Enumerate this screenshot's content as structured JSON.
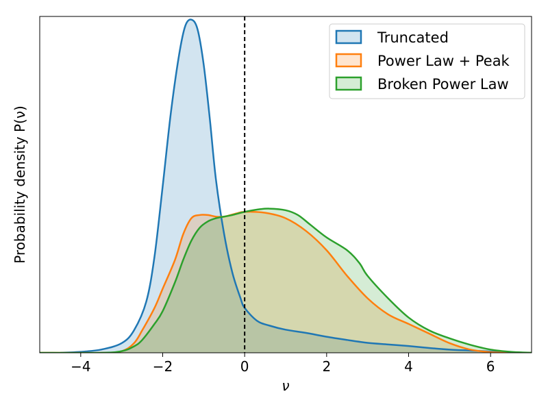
{
  "chart_data": {
    "type": "area",
    "title": "",
    "xlabel": "ν",
    "ylabel": "Probability density P(ν)",
    "xlim": [
      -5,
      7
    ],
    "ylim": [
      0,
      1.05
    ],
    "x_ticks": [
      -4,
      -2,
      0,
      2,
      4,
      6
    ],
    "x_tick_labels": [
      "−4",
      "−2",
      "0",
      "2",
      "4",
      "6"
    ],
    "y_ticks": [],
    "grid": false,
    "legend_position": "top-right",
    "reference_line": {
      "x": 0,
      "style": "dashed",
      "color": "#000000"
    },
    "series": [
      {
        "name": "Truncated",
        "color": "#1f77b4",
        "points": [
          [
            -4.5,
            0.0
          ],
          [
            -4,
            0.003
          ],
          [
            -3.5,
            0.01
          ],
          [
            -3,
            0.03
          ],
          [
            -2.7,
            0.07
          ],
          [
            -2.4,
            0.16
          ],
          [
            -2.2,
            0.3
          ],
          [
            -2,
            0.52
          ],
          [
            -1.8,
            0.75
          ],
          [
            -1.6,
            0.93
          ],
          [
            -1.45,
            1.02
          ],
          [
            -1.3,
            1.04
          ],
          [
            -1.15,
            1.01
          ],
          [
            -1.0,
            0.9
          ],
          [
            -0.85,
            0.73
          ],
          [
            -0.7,
            0.54
          ],
          [
            -0.5,
            0.37
          ],
          [
            -0.3,
            0.25
          ],
          [
            -0.1,
            0.17
          ],
          [
            0,
            0.14
          ],
          [
            0.3,
            0.1
          ],
          [
            0.6,
            0.085
          ],
          [
            1,
            0.072
          ],
          [
            1.5,
            0.062
          ],
          [
            2,
            0.05
          ],
          [
            2.5,
            0.04
          ],
          [
            3,
            0.031
          ],
          [
            3.5,
            0.026
          ],
          [
            4,
            0.021
          ],
          [
            4.5,
            0.015
          ],
          [
            5,
            0.01
          ],
          [
            5.5,
            0.007
          ],
          [
            6,
            0.004
          ],
          [
            6.5,
            0.001
          ],
          [
            7,
            0.0
          ]
        ]
      },
      {
        "name": "Power Law + Peak",
        "color": "#ff7f0e",
        "points": [
          [
            -5,
            0.0
          ],
          [
            -3.5,
            0.0
          ],
          [
            -3,
            0.005
          ],
          [
            -2.7,
            0.03
          ],
          [
            -2.5,
            0.07
          ],
          [
            -2.2,
            0.14
          ],
          [
            -2,
            0.2
          ],
          [
            -1.7,
            0.29
          ],
          [
            -1.5,
            0.37
          ],
          [
            -1.3,
            0.42
          ],
          [
            -1.1,
            0.43
          ],
          [
            -0.9,
            0.43
          ],
          [
            -0.7,
            0.425
          ],
          [
            -0.5,
            0.425
          ],
          [
            -0.2,
            0.435
          ],
          [
            0,
            0.44
          ],
          [
            0.5,
            0.437
          ],
          [
            1,
            0.42
          ],
          [
            1.5,
            0.38
          ],
          [
            2,
            0.32
          ],
          [
            2.5,
            0.24
          ],
          [
            3,
            0.17
          ],
          [
            3.5,
            0.12
          ],
          [
            4,
            0.09
          ],
          [
            4.5,
            0.06
          ],
          [
            5,
            0.03
          ],
          [
            5.5,
            0.01
          ],
          [
            6,
            0.002
          ],
          [
            6.5,
            0.0
          ],
          [
            7,
            0.0
          ]
        ]
      },
      {
        "name": "Broken Power Law",
        "color": "#2ca02c",
        "points": [
          [
            -5,
            0.0
          ],
          [
            -3.5,
            0.0
          ],
          [
            -3,
            0.005
          ],
          [
            -2.7,
            0.02
          ],
          [
            -2.5,
            0.04
          ],
          [
            -2.2,
            0.09
          ],
          [
            -2,
            0.13
          ],
          [
            -1.7,
            0.22
          ],
          [
            -1.5,
            0.29
          ],
          [
            -1.3,
            0.35
          ],
          [
            -1.1,
            0.39
          ],
          [
            -0.9,
            0.41
          ],
          [
            -0.7,
            0.42
          ],
          [
            -0.5,
            0.425
          ],
          [
            -0.3,
            0.43
          ],
          [
            0,
            0.44
          ],
          [
            0.3,
            0.447
          ],
          [
            0.6,
            0.45
          ],
          [
            1,
            0.445
          ],
          [
            1.3,
            0.43
          ],
          [
            1.6,
            0.4
          ],
          [
            2,
            0.36
          ],
          [
            2.5,
            0.32
          ],
          [
            2.8,
            0.28
          ],
          [
            3,
            0.24
          ],
          [
            3.5,
            0.17
          ],
          [
            4,
            0.11
          ],
          [
            4.5,
            0.07
          ],
          [
            5,
            0.045
          ],
          [
            5.5,
            0.025
          ],
          [
            6,
            0.01
          ],
          [
            6.5,
            0.003
          ],
          [
            7,
            0.0
          ]
        ]
      }
    ]
  }
}
